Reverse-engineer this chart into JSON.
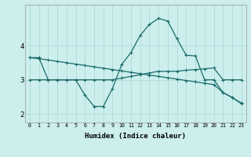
{
  "xlabel": "Humidex (Indice chaleur)",
  "bg_color": "#cceeed",
  "line_color": "#1a6b6b",
  "grid_color": "#aad6d4",
  "x_ticks": [
    0,
    1,
    2,
    3,
    4,
    5,
    6,
    7,
    8,
    9,
    10,
    11,
    12,
    13,
    14,
    15,
    16,
    17,
    18,
    19,
    20,
    21,
    22,
    23
  ],
  "y_ticks": [
    2,
    3,
    4
  ],
  "ylim": [
    1.75,
    5.2
  ],
  "xlim": [
    -0.5,
    23.5
  ],
  "line1_x": [
    0,
    1,
    2,
    3,
    4,
    5,
    6,
    7,
    8,
    9,
    10,
    11,
    12,
    13,
    14,
    15,
    16,
    17,
    18,
    19,
    20,
    21,
    22,
    23
  ],
  "line1_y": [
    3.65,
    3.62,
    3.58,
    3.54,
    3.5,
    3.46,
    3.42,
    3.38,
    3.34,
    3.3,
    3.26,
    3.22,
    3.18,
    3.14,
    3.1,
    3.06,
    3.02,
    2.98,
    2.94,
    2.9,
    2.86,
    2.63,
    2.48,
    2.3
  ],
  "line2_x": [
    0,
    1,
    2,
    3,
    4,
    5,
    6,
    7,
    8,
    9,
    10,
    11,
    12,
    13,
    14,
    15,
    16,
    17,
    18,
    19,
    20,
    21,
    22,
    23
  ],
  "line2_y": [
    3.0,
    3.0,
    3.0,
    3.0,
    3.0,
    3.0,
    3.0,
    3.0,
    3.0,
    3.0,
    3.05,
    3.1,
    3.15,
    3.2,
    3.25,
    3.25,
    3.25,
    3.28,
    3.3,
    3.32,
    3.35,
    3.0,
    3.0,
    3.0
  ],
  "line3_x": [
    0,
    1,
    2,
    3,
    4,
    5,
    6,
    7,
    8,
    9,
    10,
    11,
    12,
    13,
    14,
    15,
    16,
    17,
    18,
    19,
    20,
    21,
    22,
    23
  ],
  "line3_y": [
    3.65,
    3.65,
    3.0,
    3.0,
    3.0,
    3.0,
    2.55,
    2.22,
    2.22,
    2.75,
    3.45,
    3.8,
    4.3,
    4.62,
    4.8,
    4.72,
    4.2,
    3.72,
    3.7,
    3.0,
    3.0,
    2.63,
    2.48,
    2.32
  ]
}
